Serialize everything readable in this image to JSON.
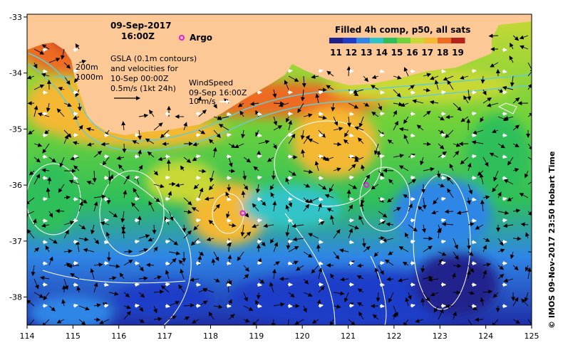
{
  "map": {
    "date_title": "09-Sep-2017",
    "time_title": "16:00Z",
    "argo_label": "Argo",
    "depth_labels": [
      "200m",
      "1000m"
    ],
    "gsla_lines": [
      "GSLA (0.1m contours)",
      "and velocities for",
      "10-Sep 00:00Z",
      "0.5m/s (1kt 24h)"
    ],
    "wind_lines": [
      "WindSpeed",
      "09-Sep 16:00Z",
      "10 m/s"
    ],
    "colorbar_title": "Filled 4h comp, p50, all sats",
    "colorbar_ticks": [
      "11",
      "12",
      "13",
      "14",
      "15",
      "16",
      "17",
      "18",
      "19"
    ],
    "colorbar_colors": [
      "#20208c",
      "#1f3cc8",
      "#2f86e6",
      "#30c4c8",
      "#2fbf5a",
      "#6fd23a",
      "#c8d834",
      "#f4b832",
      "#ee6a22",
      "#b4221c"
    ],
    "credit": "© IMOS 09-Nov-2017 23:50 Hobart Time",
    "colors": {
      "land": "#fbc896",
      "argo": "#e020e0",
      "contour": "#ffffff",
      "isobath": "#66cccc"
    }
  },
  "axes": {
    "x_ticks": [
      "114",
      "115",
      "116",
      "117",
      "118",
      "119",
      "120",
      "121",
      "122",
      "123",
      "124",
      "125"
    ],
    "y_ticks": [
      "-33",
      "-34",
      "-35",
      "-36",
      "-37",
      "-38"
    ]
  },
  "floats": [
    {
      "lon": 121.4,
      "lat": -36.0
    },
    {
      "lon": 118.7,
      "lat": -36.5
    }
  ]
}
